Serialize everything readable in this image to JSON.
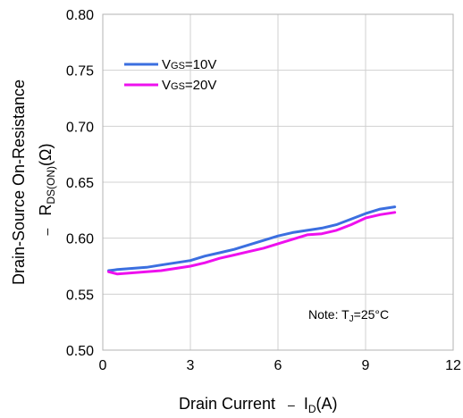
{
  "chart_data": {
    "type": "line",
    "xlabel_main": "Drain Current",
    "xlabel_dash": "–",
    "xlabel_sym": "I",
    "xlabel_sub": "D",
    "xlabel_unit": "(A)",
    "ylabel_line1": "Drain-Source On-Resistance",
    "ylabel_dash": "–",
    "ylabel_sym": "R",
    "ylabel_sub": "DS(ON)",
    "ylabel_unit": "(Ω)",
    "xlim": [
      0,
      12
    ],
    "ylim": [
      0.5,
      0.8
    ],
    "x_ticks": [
      0,
      3,
      6,
      9,
      12
    ],
    "x_tick_labels": [
      "0",
      "3",
      "6",
      "9",
      "12"
    ],
    "y_ticks": [
      0.5,
      0.55,
      0.6,
      0.65,
      0.7,
      0.75,
      0.8
    ],
    "y_tick_labels": [
      "0.50",
      "0.55",
      "0.60",
      "0.65",
      "0.70",
      "0.75",
      "0.80"
    ],
    "grid": true,
    "legend_position": "top-left",
    "series": [
      {
        "name_prefix": "V",
        "name_sub": "GS",
        "name_suffix": "=10V",
        "color": "#3b6fe0",
        "x": [
          0.2,
          0.5,
          1.0,
          1.5,
          2.0,
          2.5,
          3.0,
          3.5,
          4.0,
          4.5,
          5.0,
          5.5,
          6.0,
          6.5,
          7.0,
          7.5,
          8.0,
          8.5,
          9.0,
          9.5,
          10.0
        ],
        "y": [
          0.571,
          0.572,
          0.573,
          0.574,
          0.576,
          0.578,
          0.58,
          0.584,
          0.587,
          0.59,
          0.594,
          0.598,
          0.602,
          0.605,
          0.607,
          0.609,
          0.612,
          0.617,
          0.622,
          0.626,
          0.628
        ]
      },
      {
        "name_prefix": "V",
        "name_sub": "GS",
        "name_suffix": "=20V",
        "color": "#ee10ee",
        "x": [
          0.2,
          0.5,
          1.0,
          1.5,
          2.0,
          2.5,
          3.0,
          3.5,
          4.0,
          4.5,
          5.0,
          5.5,
          6.0,
          6.5,
          7.0,
          7.5,
          8.0,
          8.5,
          9.0,
          9.5,
          10.0
        ],
        "y": [
          0.57,
          0.568,
          0.569,
          0.57,
          0.571,
          0.573,
          0.575,
          0.578,
          0.582,
          0.585,
          0.588,
          0.591,
          0.595,
          0.599,
          0.603,
          0.604,
          0.607,
          0.612,
          0.618,
          0.621,
          0.623
        ]
      }
    ],
    "note_prefix": "Note: T",
    "note_sub": "J",
    "note_suffix": "=25°C"
  }
}
